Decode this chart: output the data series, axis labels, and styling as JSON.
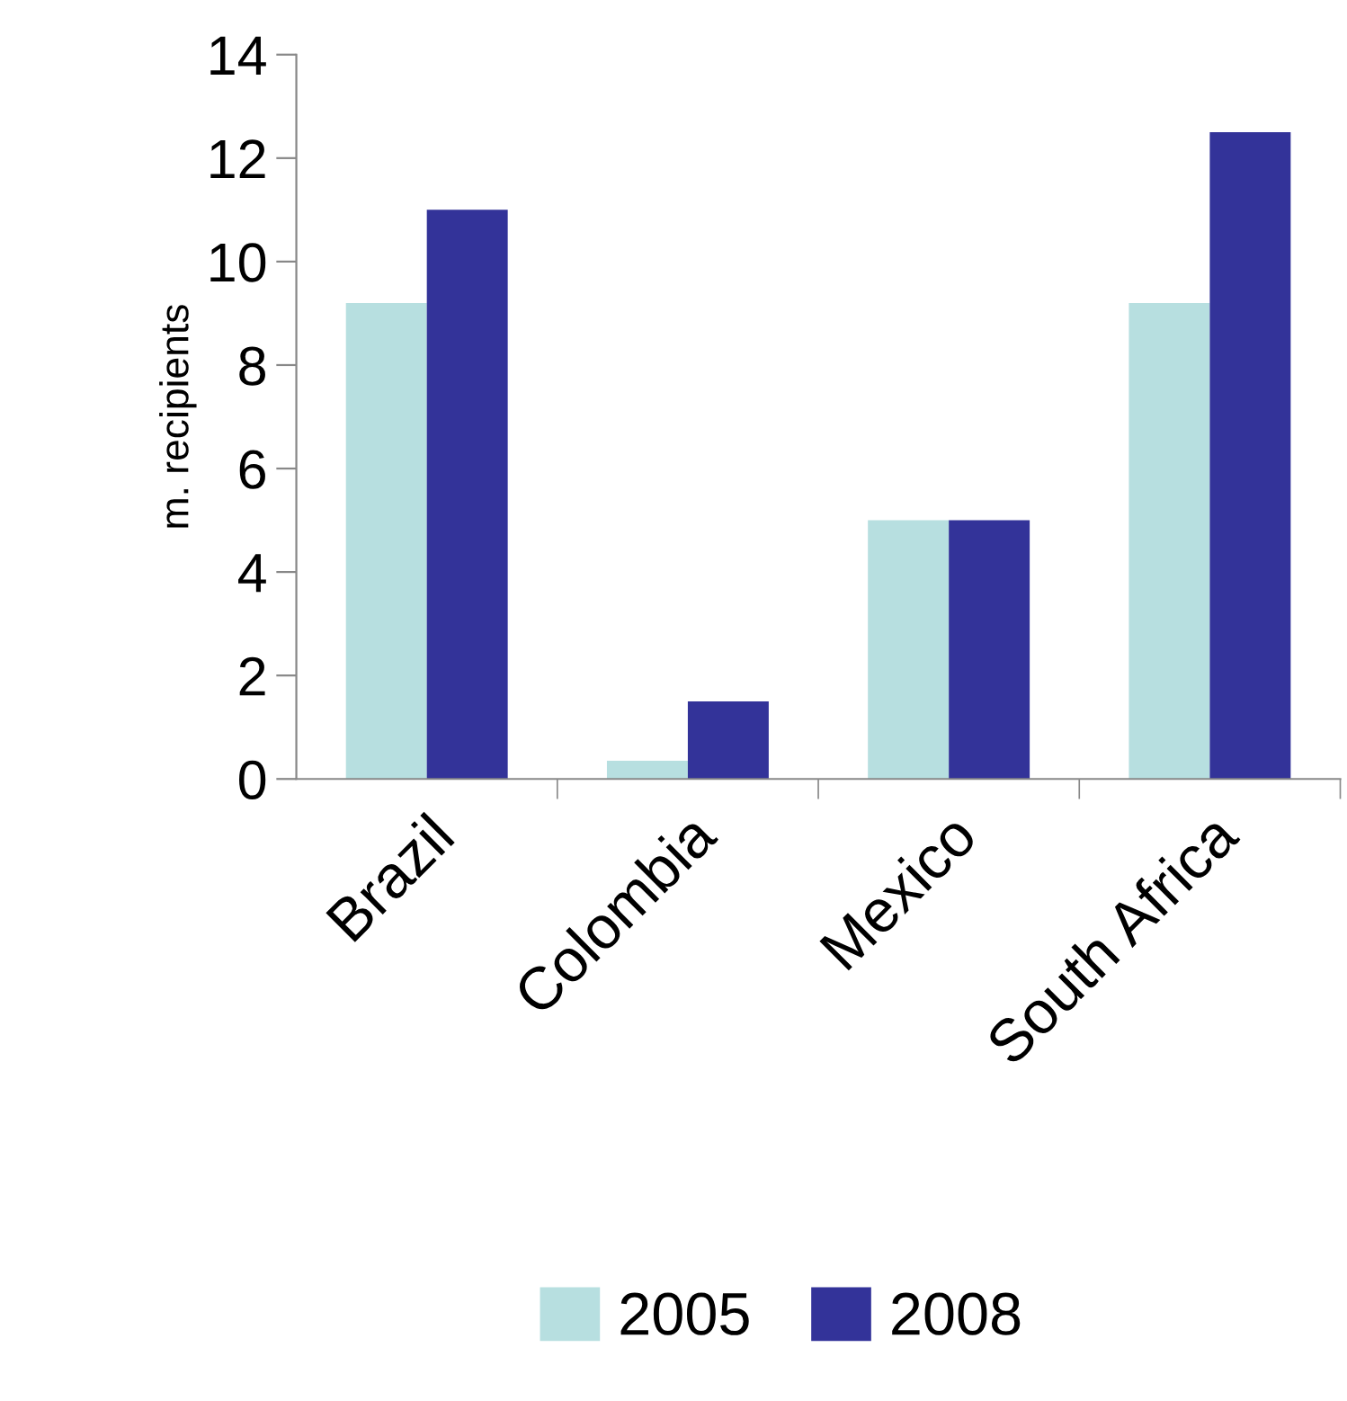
{
  "chart_data": {
    "type": "bar",
    "ylabel": "m. recipients",
    "categories": [
      "Brazil",
      "Colombia",
      "Mexico",
      "South Africa"
    ],
    "series": [
      {
        "name": "2005",
        "color": "#b7dfe0",
        "values": [
          9.2,
          0.35,
          5,
          9.2
        ]
      },
      {
        "name": "2008",
        "color": "#333399",
        "values": [
          11,
          1.5,
          5,
          12.5
        ]
      }
    ],
    "ylim": [
      0,
      14
    ],
    "yticks": [
      0,
      2,
      4,
      6,
      8,
      10,
      12,
      14
    ],
    "grid": false,
    "legend": "bottom"
  }
}
